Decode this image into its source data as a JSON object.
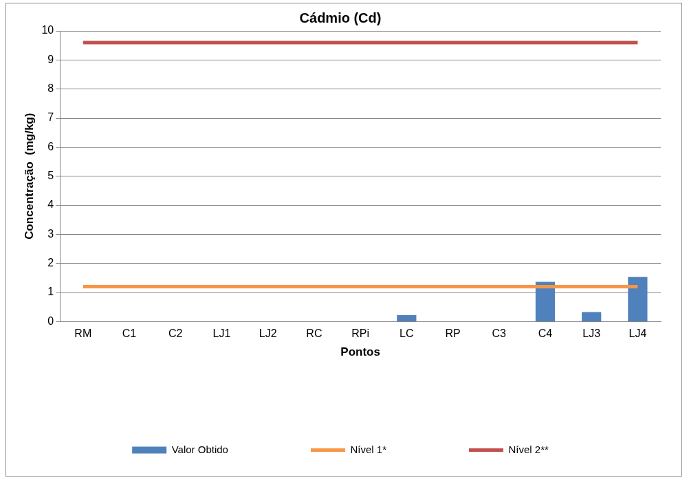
{
  "chart_data": {
    "type": "bar",
    "title": "Cádmio (Cd)",
    "xlabel": "Pontos",
    "ylabel": "Concentração  (mg/kg)",
    "categories": [
      "RM",
      "C1",
      "C2",
      "LJ1",
      "LJ2",
      "RC",
      "RPi",
      "LC",
      "RP",
      "C3",
      "C4",
      "LJ3",
      "LJ4"
    ],
    "series": [
      {
        "name": "Valor Obtido",
        "color": "#4f81bd",
        "values": [
          0,
          0,
          0,
          0,
          0,
          0,
          0,
          0.22,
          0,
          0,
          1.37,
          0.33,
          1.54
        ]
      },
      {
        "name": "Nível 1*",
        "type": "line",
        "color": "#f79646",
        "values": [
          1.2,
          1.2,
          1.2,
          1.2,
          1.2,
          1.2,
          1.2,
          1.2,
          1.2,
          1.2,
          1.2,
          1.2,
          1.2
        ]
      },
      {
        "name": "Nível 2**",
        "type": "line",
        "color": "#c0504d",
        "values": [
          9.6,
          9.6,
          9.6,
          9.6,
          9.6,
          9.6,
          9.6,
          9.6,
          9.6,
          9.6,
          9.6,
          9.6,
          9.6
        ]
      }
    ],
    "ylim": [
      0,
      10
    ],
    "yticks": [
      0,
      1,
      2,
      3,
      4,
      5,
      6,
      7,
      8,
      9,
      10
    ],
    "grid": "y",
    "legend": "bottom",
    "marker": "none"
  }
}
